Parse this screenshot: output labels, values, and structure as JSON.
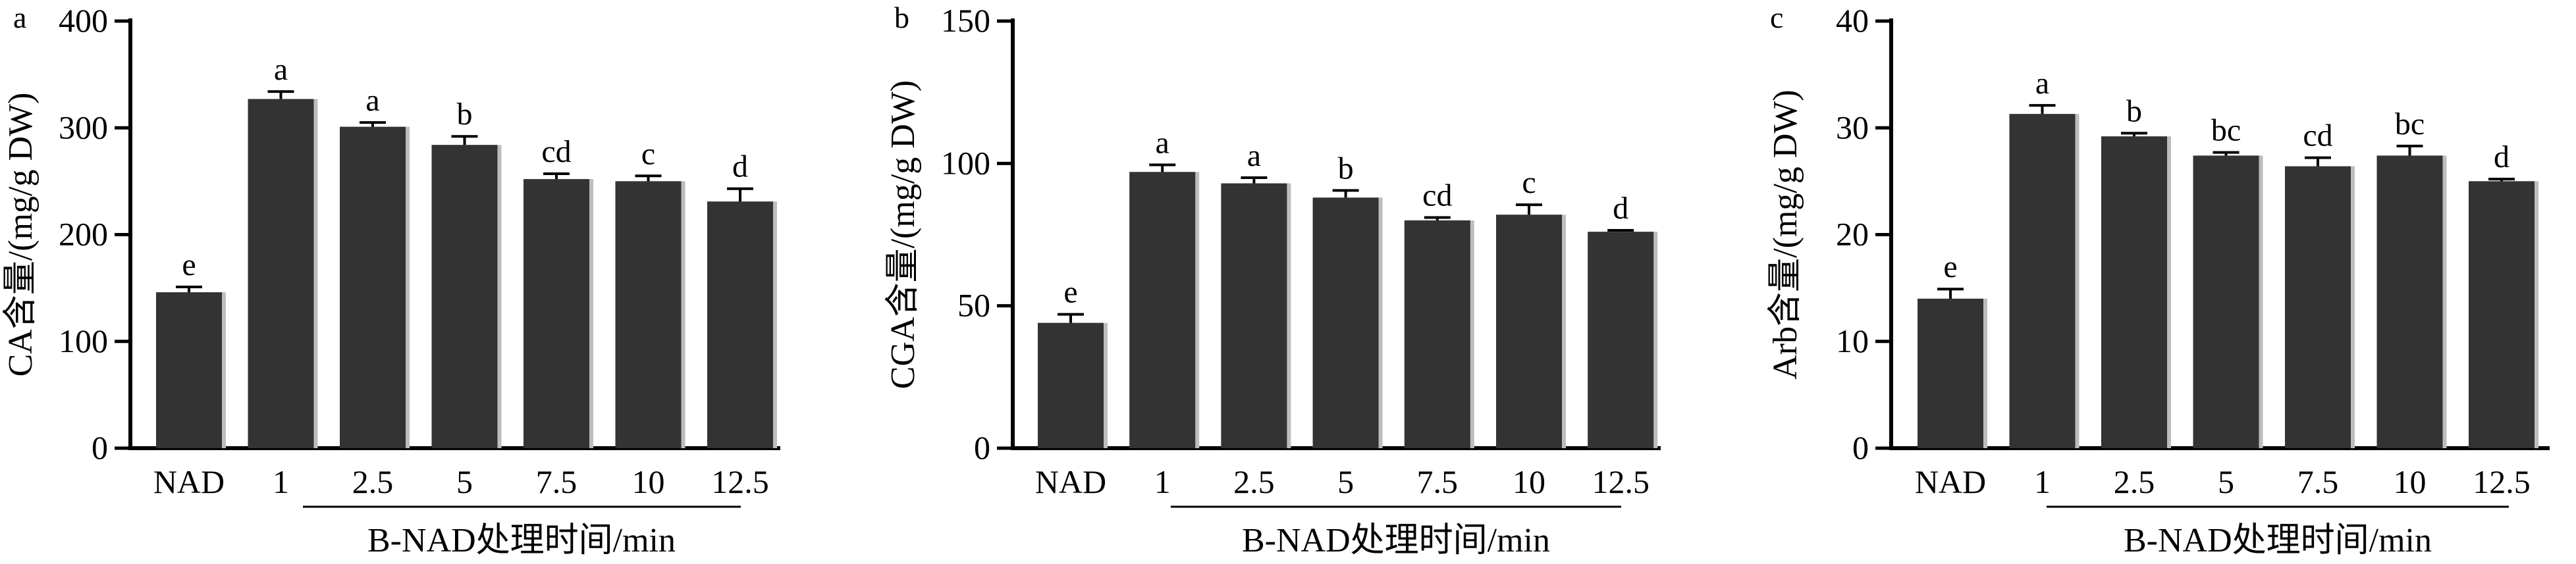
{
  "chart_data": [
    {
      "type": "bar",
      "panel": "a",
      "ylabel": "CA含量/(mg/g DW)",
      "xlabel": "B-NAD处理时间/min",
      "categories": [
        "NAD",
        "1",
        "2.5",
        "5",
        "7.5",
        "10",
        "12.5"
      ],
      "values": [
        146,
        327,
        301,
        284,
        252,
        250,
        231
      ],
      "errors": [
        5,
        7,
        4,
        8,
        5,
        5,
        12
      ],
      "significance": [
        "e",
        "a",
        "a",
        "b",
        "cd",
        "c",
        "d"
      ],
      "ylim": [
        0,
        400
      ],
      "yticks": [
        "0",
        "100",
        "200",
        "300",
        "400"
      ],
      "bar_color": "#333333"
    },
    {
      "type": "bar",
      "panel": "b",
      "ylabel": "CGA含量/(mg/g DW)",
      "xlabel": "B-NAD处理时间/min",
      "categories": [
        "NAD",
        "1",
        "2.5",
        "5",
        "7.5",
        "10",
        "12.5"
      ],
      "values": [
        44,
        97,
        93,
        88,
        80,
        82,
        76
      ],
      "errors": [
        3,
        2.5,
        2,
        2.5,
        1,
        3.5,
        0.5
      ],
      "significance": [
        "e",
        "a",
        "a",
        "b",
        "cd",
        "c",
        "d"
      ],
      "ylim": [
        0,
        150
      ],
      "yticks": [
        "0",
        "50",
        "100",
        "150"
      ],
      "bar_color": "#333333"
    },
    {
      "type": "bar",
      "panel": "c",
      "ylabel": "Arb含量/(mg/g DW)",
      "xlabel": "B-NAD处理时间/min",
      "categories": [
        "NAD",
        "1",
        "2.5",
        "5",
        "7.5",
        "10",
        "12.5"
      ],
      "values": [
        14,
        31.3,
        29.2,
        27.4,
        26.4,
        27.4,
        25.0
      ],
      "errors": [
        0.9,
        0.8,
        0.3,
        0.3,
        0.8,
        0.9,
        0.2
      ],
      "significance": [
        "e",
        "a",
        "b",
        "bc",
        "cd",
        "bc",
        "d"
      ],
      "ylim": [
        0,
        40
      ],
      "yticks": [
        "0",
        "10",
        "20",
        "30",
        "40"
      ],
      "bar_color": "#333333"
    }
  ]
}
